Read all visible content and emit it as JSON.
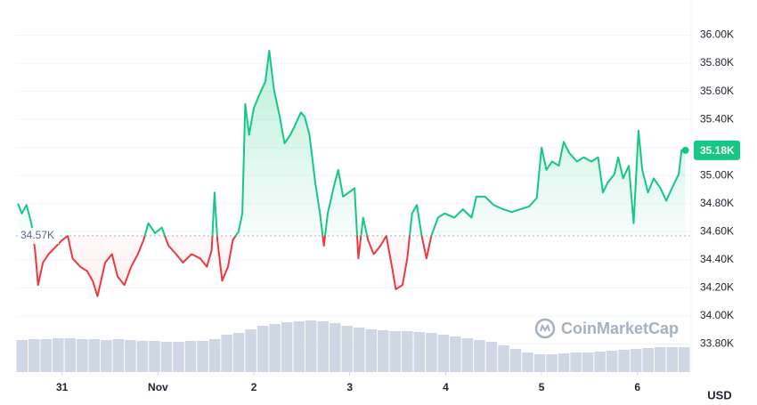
{
  "chart_data": {
    "type": "line",
    "currency": "USD",
    "watermark": "CoinMarketCap",
    "x": [
      -0.46,
      -0.42,
      -0.37,
      -0.32,
      -0.28,
      -0.25,
      -0.2,
      -0.14,
      -0.07,
      0,
      0.06,
      0.11,
      0.19,
      0.26,
      0.32,
      0.37,
      0.45,
      0.52,
      0.58,
      0.65,
      0.72,
      0.79,
      0.85,
      0.9,
      0.97,
      1.04,
      1.11,
      1.19,
      1.26,
      1.35,
      1.44,
      1.51,
      1.56,
      1.59,
      1.62,
      1.67,
      1.73,
      1.78,
      1.84,
      1.88,
      1.91,
      1.95,
      2.0,
      2.06,
      2.12,
      2.16,
      2.21,
      2.27,
      2.32,
      2.38,
      2.43,
      2.49,
      2.53,
      2.58,
      2.64,
      2.69,
      2.73,
      2.77,
      2.83,
      2.88,
      2.93,
      2.99,
      3.05,
      3.09,
      3.14,
      3.19,
      3.25,
      3.32,
      3.38,
      3.44,
      3.48,
      3.55,
      3.6,
      3.65,
      3.7,
      3.75,
      3.8,
      3.85,
      3.92,
      3.99,
      4.09,
      4.18,
      4.27,
      4.32,
      4.41,
      4.5,
      4.6,
      4.69,
      4.78,
      4.87,
      4.95,
      5.0,
      5.05,
      5.11,
      5.18,
      5.23,
      5.29,
      5.37,
      5.44,
      5.52,
      5.59,
      5.64,
      5.69,
      5.76,
      5.8,
      5.85,
      5.91,
      5.96,
      6.01,
      6.05,
      6.11,
      6.17,
      6.24,
      6.3,
      6.36,
      6.43,
      6.46,
      6.5
    ],
    "values": [
      34.8,
      34.73,
      34.79,
      34.66,
      34.46,
      34.22,
      34.38,
      34.44,
      34.49,
      34.54,
      34.57,
      34.41,
      34.35,
      34.32,
      34.25,
      34.14,
      34.38,
      34.44,
      34.28,
      34.22,
      34.35,
      34.44,
      34.54,
      34.66,
      34.59,
      34.63,
      34.5,
      34.44,
      34.38,
      34.44,
      34.41,
      34.35,
      34.47,
      34.88,
      34.54,
      34.25,
      34.35,
      34.54,
      34.6,
      34.73,
      35.51,
      35.29,
      35.48,
      35.58,
      35.67,
      35.89,
      35.61,
      35.42,
      35.23,
      35.29,
      35.36,
      35.45,
      35.42,
      35.29,
      34.95,
      34.73,
      34.5,
      34.73,
      34.91,
      35.04,
      34.85,
      34.88,
      34.91,
      34.41,
      34.7,
      34.54,
      34.44,
      34.5,
      34.57,
      34.35,
      34.19,
      34.22,
      34.41,
      34.73,
      34.79,
      34.57,
      34.41,
      34.57,
      34.7,
      34.73,
      34.7,
      34.76,
      34.7,
      34.85,
      34.85,
      34.79,
      34.76,
      34.74,
      34.76,
      34.78,
      34.84,
      35.2,
      35.04,
      35.1,
      35.07,
      35.24,
      35.16,
      35.1,
      35.13,
      35.1,
      35.13,
      34.88,
      34.95,
      35.01,
      35.13,
      34.98,
      35.07,
      34.66,
      35.32,
      35.04,
      34.88,
      34.98,
      34.91,
      34.82,
      34.91,
      35.01,
      35.18,
      35.18
    ],
    "baseline": {
      "value": 34.57,
      "label": "34.57K"
    },
    "last_price": {
      "value": 35.18,
      "label": "35.18K"
    },
    "up_color": "#16c784",
    "down_color": "#ea3943",
    "volume": {
      "color": "#cfd6e4",
      "values": [
        36,
        37,
        37,
        38,
        38,
        37,
        37,
        36,
        37,
        36,
        35,
        35,
        34,
        34,
        35,
        35,
        37,
        42,
        44,
        48,
        52,
        54,
        56,
        57,
        58,
        57,
        55,
        52,
        50,
        48,
        47,
        46,
        46,
        45,
        44,
        42,
        40,
        38,
        36,
        34,
        30,
        26,
        22,
        20,
        20,
        21,
        22,
        22,
        23,
        24,
        25,
        26,
        27,
        28,
        28,
        28
      ]
    },
    "xlim": [
      -0.48,
      6.55
    ],
    "xticks": [
      {
        "value": 0,
        "label": "31"
      },
      {
        "value": 1,
        "label": "Nov"
      },
      {
        "value": 2,
        "label": "2"
      },
      {
        "value": 3,
        "label": "3"
      },
      {
        "value": 4,
        "label": "4"
      },
      {
        "value": 5,
        "label": "5"
      },
      {
        "value": 6,
        "label": "6"
      }
    ],
    "ylim": [
      33.6,
      36.2
    ],
    "yticks": [
      {
        "value": 33.8,
        "label": "33.80K"
      },
      {
        "value": 34,
        "label": "34.00K"
      },
      {
        "value": 34.2,
        "label": "34.20K"
      },
      {
        "value": 34.4,
        "label": "34.40K"
      },
      {
        "value": 34.6,
        "label": "34.60K"
      },
      {
        "value": 34.8,
        "label": "34.80K"
      },
      {
        "value": 35,
        "label": "35.00K"
      },
      {
        "value": 35.2,
        "label": "35.20K"
      },
      {
        "value": 35.4,
        "label": "35.40K"
      },
      {
        "value": 35.6,
        "label": "35.60K"
      },
      {
        "value": 35.8,
        "label": "35.80K"
      },
      {
        "value": 36,
        "label": "36.00K"
      }
    ],
    "grid": true
  }
}
